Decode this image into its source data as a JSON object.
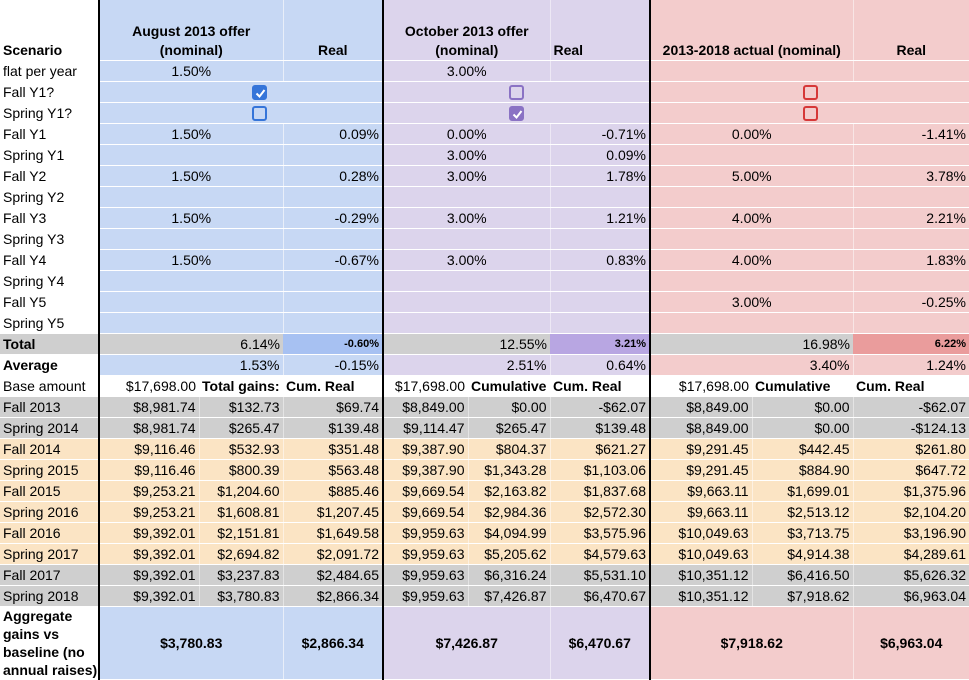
{
  "header": {
    "scenario": "Scenario",
    "aug_title_1": "August 2013 offer",
    "aug_title_2": "(nominal)",
    "oct_title_1": "October 2013 offer",
    "oct_title_2": "(nominal)",
    "act_title": "2013-2018 actual (nominal)",
    "real": "Real"
  },
  "flat": {
    "label": "flat per year",
    "aug": "1.50%",
    "oct": "3.00%"
  },
  "checkboxes": {
    "fall_label": "Fall Y1?",
    "spring_label": "Spring Y1?",
    "aug": {
      "fall": true,
      "spring": false
    },
    "oct": {
      "fall": false,
      "spring": true
    },
    "act": {
      "fall": false,
      "spring": false
    }
  },
  "scenario_rows": [
    {
      "label": "Fall Y1",
      "aug": "1.50%",
      "aug_real": "0.09%",
      "oct": "0.00%",
      "oct_real": "-0.71%",
      "act": "0.00%",
      "act_real": "-1.41%"
    },
    {
      "label": "Spring Y1",
      "aug": "",
      "aug_real": "",
      "oct": "3.00%",
      "oct_real": "0.09%",
      "act": "",
      "act_real": ""
    },
    {
      "label": "Fall Y2",
      "aug": "1.50%",
      "aug_real": "0.28%",
      "oct": "3.00%",
      "oct_real": "1.78%",
      "act": "5.00%",
      "act_real": "3.78%"
    },
    {
      "label": "Spring Y2",
      "aug": "",
      "aug_real": "",
      "oct": "",
      "oct_real": "",
      "act": "",
      "act_real": ""
    },
    {
      "label": "Fall Y3",
      "aug": "1.50%",
      "aug_real": "-0.29%",
      "oct": "3.00%",
      "oct_real": "1.21%",
      "act": "4.00%",
      "act_real": "2.21%"
    },
    {
      "label": "Spring Y3",
      "aug": "",
      "aug_real": "",
      "oct": "",
      "oct_real": "",
      "act": "",
      "act_real": ""
    },
    {
      "label": "Fall Y4",
      "aug": "1.50%",
      "aug_real": "-0.67%",
      "oct": "3.00%",
      "oct_real": "0.83%",
      "act": "4.00%",
      "act_real": "1.83%"
    },
    {
      "label": "Spring Y4",
      "aug": "",
      "aug_real": "",
      "oct": "",
      "oct_real": "",
      "act": "",
      "act_real": ""
    },
    {
      "label": "Fall Y5",
      "aug": "",
      "aug_real": "",
      "oct": "",
      "oct_real": "",
      "act": "3.00%",
      "act_real": "-0.25%"
    },
    {
      "label": "Spring Y5",
      "aug": "",
      "aug_real": "",
      "oct": "",
      "oct_real": "",
      "act": "",
      "act_real": ""
    }
  ],
  "total": {
    "label": "Total",
    "aug": "6.14%",
    "aug_real": "-0.60%",
    "oct": "12.55%",
    "oct_real": "3.21%",
    "act": "16.98%",
    "act_real": "6.22%"
  },
  "average": {
    "label": "Average",
    "aug": "1.53%",
    "aug_real": "-0.15%",
    "oct": "2.51%",
    "oct_real": "0.64%",
    "act": "3.40%",
    "act_real": "1.24%"
  },
  "base": {
    "label": "Base amount",
    "aug": "$17,698.00",
    "aug_h2": "Total gains:",
    "aug_h3": "Cum. Real",
    "oct": "$17,698.00",
    "oct_h2": "Cumulative",
    "oct_h3": "Cum. Real",
    "act": "$17,698.00",
    "act_h2": "Cumulative",
    "act_h3": "Cum. Real"
  },
  "semesters": [
    {
      "label": "Fall 2013",
      "cells": [
        "$8,981.74",
        "$132.73",
        "$69.74",
        "$8,849.00",
        "$0.00",
        "-$62.07",
        "$8,849.00",
        "$0.00",
        "-$62.07"
      ]
    },
    {
      "label": "Spring 2014",
      "cells": [
        "$8,981.74",
        "$265.47",
        "$139.48",
        "$9,114.47",
        "$265.47",
        "$139.48",
        "$8,849.00",
        "$0.00",
        "-$124.13"
      ]
    },
    {
      "label": "Fall 2014",
      "cells": [
        "$9,116.46",
        "$532.93",
        "$351.48",
        "$9,387.90",
        "$804.37",
        "$621.27",
        "$9,291.45",
        "$442.45",
        "$261.80"
      ]
    },
    {
      "label": "Spring 2015",
      "cells": [
        "$9,116.46",
        "$800.39",
        "$563.48",
        "$9,387.90",
        "$1,343.28",
        "$1,103.06",
        "$9,291.45",
        "$884.90",
        "$647.72"
      ]
    },
    {
      "label": "Fall 2015",
      "cells": [
        "$9,253.21",
        "$1,204.60",
        "$885.46",
        "$9,669.54",
        "$2,163.82",
        "$1,837.68",
        "$9,663.11",
        "$1,699.01",
        "$1,375.96"
      ]
    },
    {
      "label": "Spring 2016",
      "cells": [
        "$9,253.21",
        "$1,608.81",
        "$1,207.45",
        "$9,669.54",
        "$2,984.36",
        "$2,572.30",
        "$9,663.11",
        "$2,513.12",
        "$2,104.20"
      ]
    },
    {
      "label": "Fall 2016",
      "cells": [
        "$9,392.01",
        "$2,151.81",
        "$1,649.58",
        "$9,959.63",
        "$4,094.99",
        "$3,575.96",
        "$10,049.63",
        "$3,713.75",
        "$3,196.90"
      ]
    },
    {
      "label": "Spring 2017",
      "cells": [
        "$9,392.01",
        "$2,694.82",
        "$2,091.72",
        "$9,959.63",
        "$5,205.62",
        "$4,579.63",
        "$10,049.63",
        "$4,914.38",
        "$4,289.61"
      ]
    },
    {
      "label": "Fall 2017",
      "cells": [
        "$9,392.01",
        "$3,237.83",
        "$2,484.65",
        "$9,959.63",
        "$6,316.24",
        "$5,531.10",
        "$10,351.12",
        "$6,416.50",
        "$5,626.32"
      ]
    },
    {
      "label": "Spring 2018",
      "cells": [
        "$9,392.01",
        "$3,780.83",
        "$2,866.34",
        "$9,959.63",
        "$7,426.87",
        "$6,470.67",
        "$10,351.12",
        "$7,918.62",
        "$6,963.04"
      ]
    }
  ],
  "aggregate": {
    "label_1": "Aggregate",
    "label_2": "gains vs",
    "label_3": "baseline (no",
    "label_4": "annual raises)",
    "aug": "$3,780.83",
    "aug_real": "$2,866.34",
    "oct": "$7,426.87",
    "oct_real": "$6,470.67",
    "act": "$7,918.62",
    "act_real": "$6,963.04"
  }
}
